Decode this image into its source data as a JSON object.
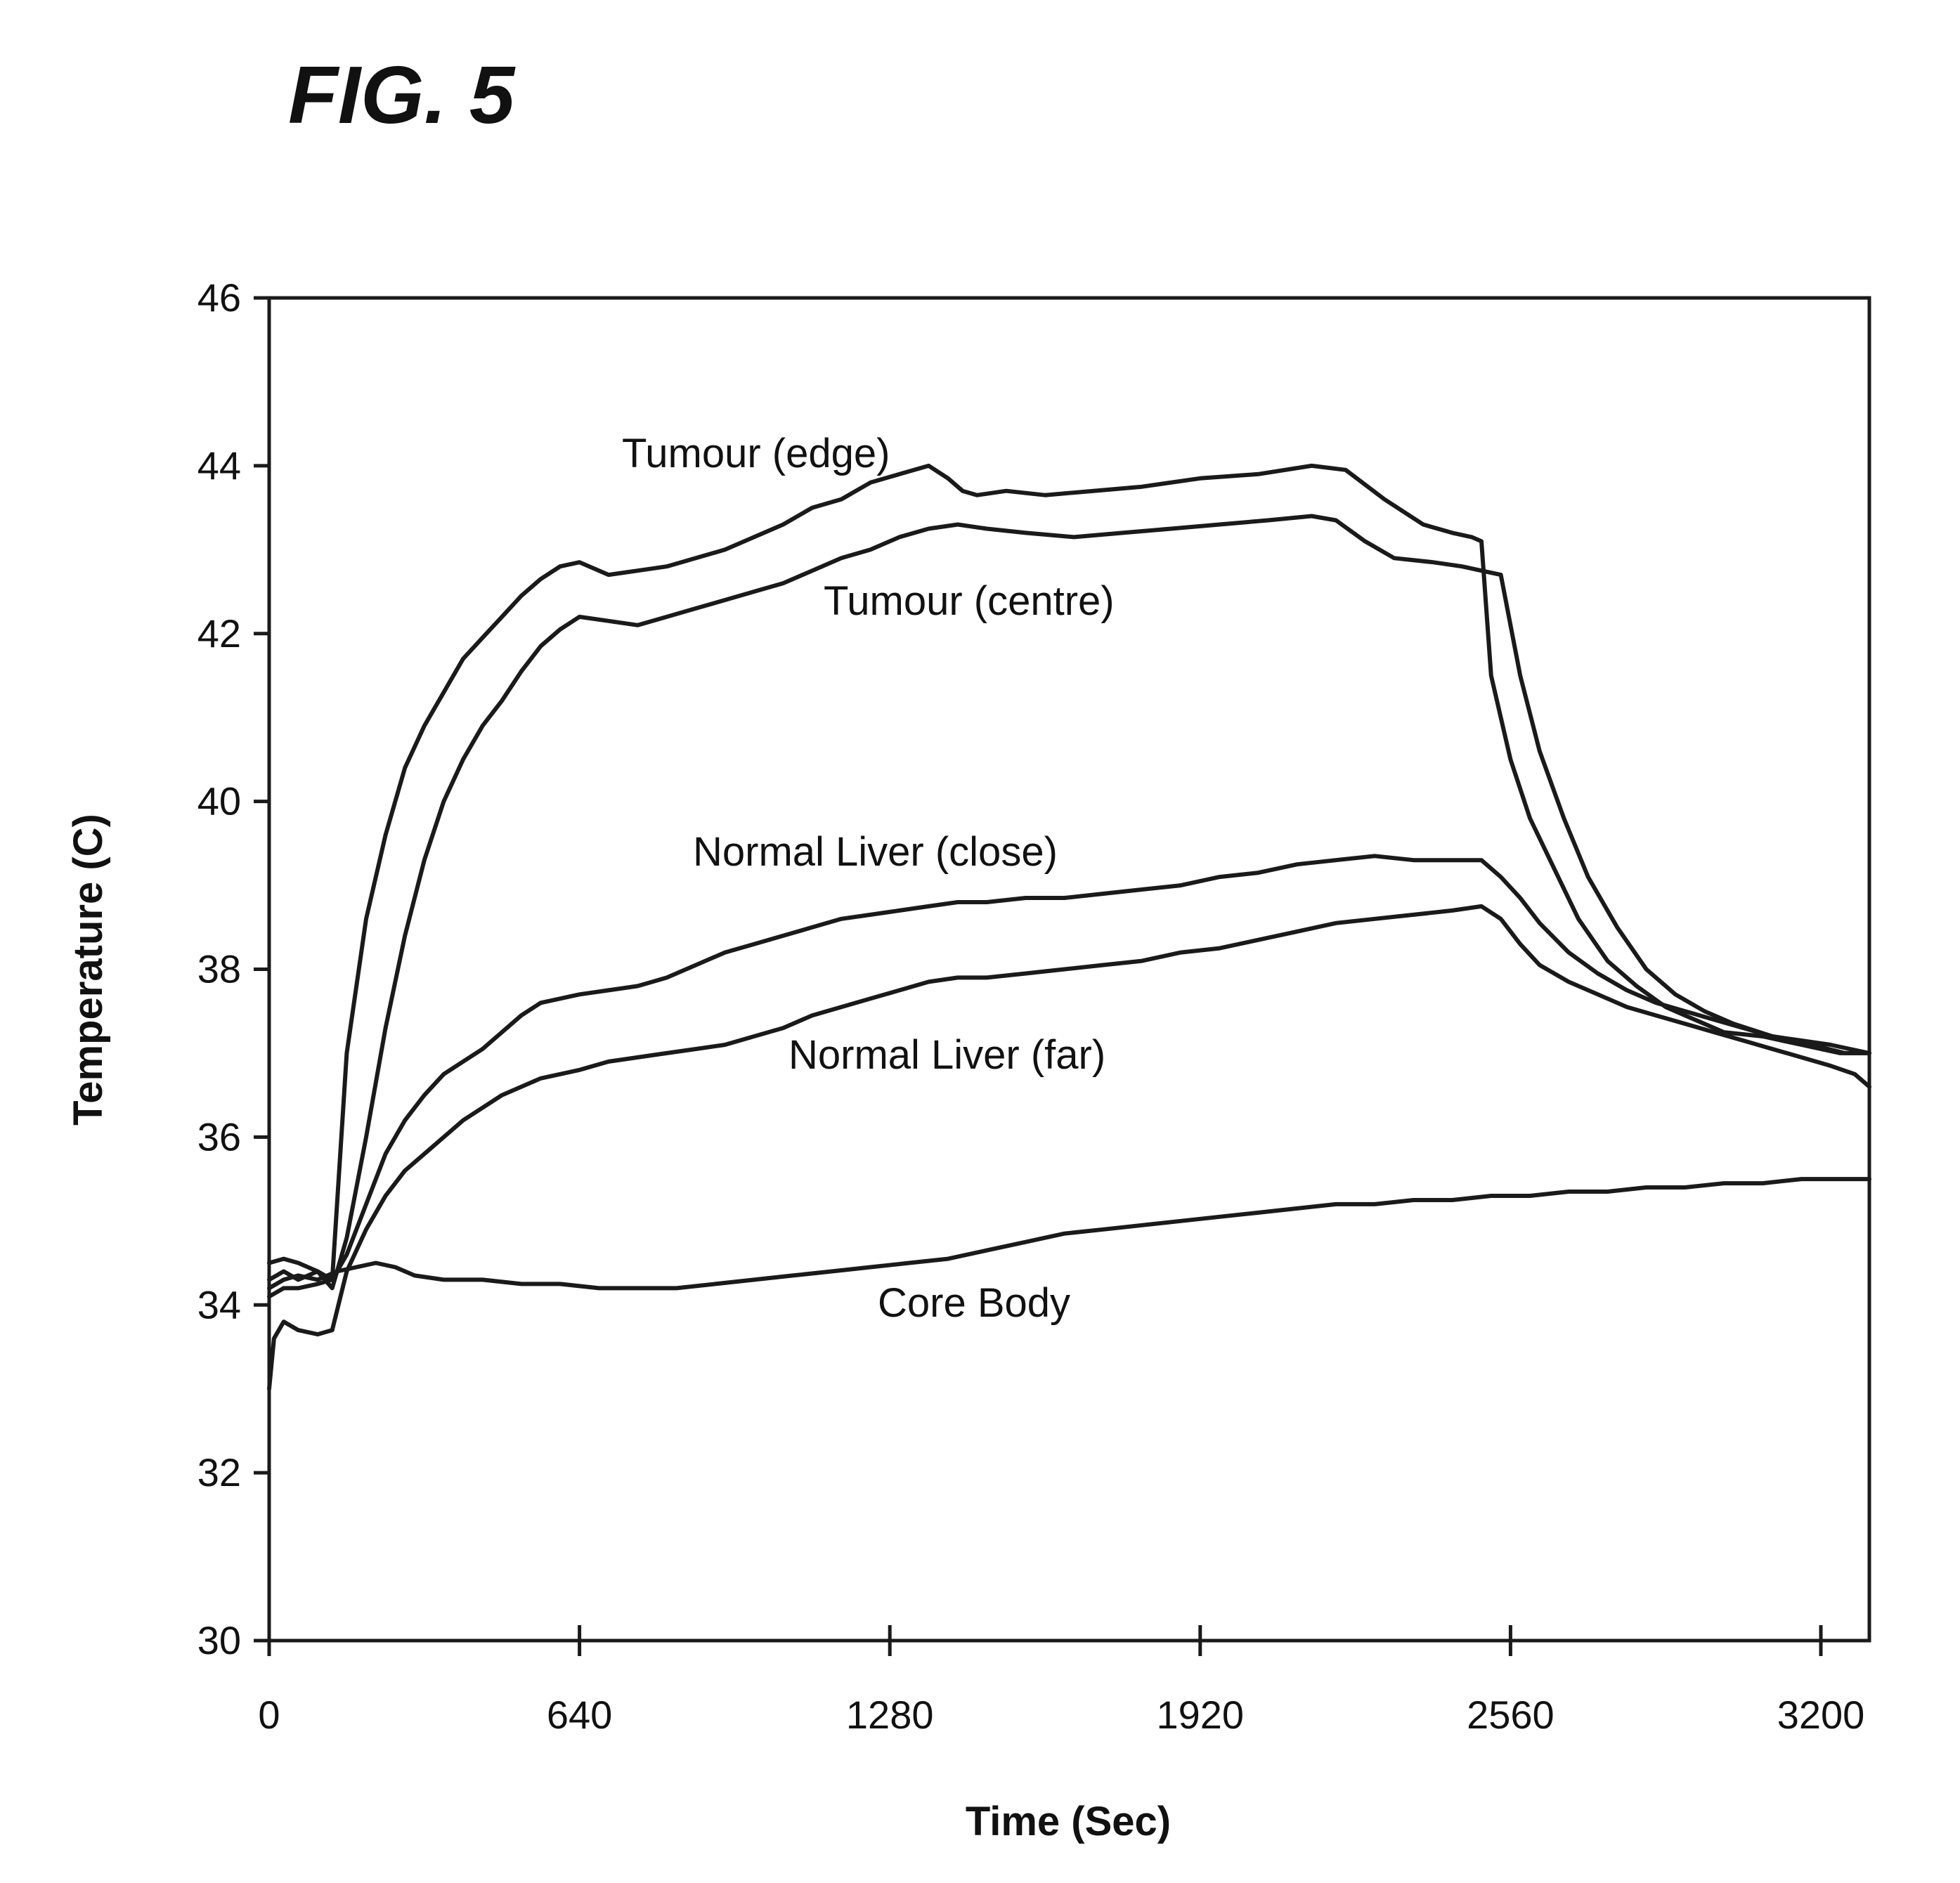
{
  "figure_title": "FIG. 5",
  "chart_data": {
    "type": "line",
    "xlabel": "Time (Sec)",
    "ylabel": "Temperature (C)",
    "xlim": [
      0,
      3300
    ],
    "ylim": [
      30,
      46
    ],
    "x_ticks": [
      0,
      640,
      1280,
      1920,
      2560,
      3200
    ],
    "y_ticks": [
      30,
      32,
      34,
      36,
      38,
      40,
      42,
      44,
      46
    ],
    "grid": false,
    "legend": "none (inline labels)",
    "series": [
      {
        "name": "Tumour (edge)",
        "x": [
          0,
          30,
          60,
          100,
          130,
          160,
          200,
          240,
          280,
          320,
          360,
          400,
          440,
          480,
          520,
          560,
          600,
          640,
          700,
          760,
          820,
          880,
          940,
          1000,
          1060,
          1120,
          1180,
          1240,
          1300,
          1360,
          1400,
          1430,
          1460,
          1520,
          1600,
          1700,
          1800,
          1920,
          2040,
          2150,
          2220,
          2300,
          2380,
          2440,
          2480,
          2500,
          2520,
          2560,
          2600,
          2650,
          2700,
          2760,
          2820,
          2880,
          2940,
          3000,
          3080,
          3160,
          3240,
          3300
        ],
        "y": [
          34.3,
          34.4,
          34.3,
          34.4,
          34.3,
          37.0,
          38.6,
          39.6,
          40.4,
          40.9,
          41.3,
          41.7,
          41.95,
          42.2,
          42.45,
          42.65,
          42.8,
          42.85,
          42.7,
          42.75,
          42.8,
          42.9,
          43.0,
          43.15,
          43.3,
          43.5,
          43.6,
          43.8,
          43.9,
          44.0,
          43.85,
          43.7,
          43.65,
          43.7,
          43.65,
          43.7,
          43.75,
          43.85,
          43.9,
          44.0,
          43.95,
          43.6,
          43.3,
          43.2,
          43.15,
          43.1,
          41.5,
          40.5,
          39.8,
          39.2,
          38.6,
          38.1,
          37.8,
          37.55,
          37.4,
          37.25,
          37.2,
          37.1,
          37.0,
          37.0
        ]
      },
      {
        "name": "Tumour (centre)",
        "x": [
          0,
          30,
          60,
          100,
          130,
          160,
          200,
          240,
          280,
          320,
          360,
          400,
          440,
          480,
          520,
          560,
          600,
          640,
          700,
          760,
          820,
          880,
          940,
          1000,
          1060,
          1120,
          1180,
          1240,
          1300,
          1360,
          1420,
          1480,
          1560,
          1660,
          1760,
          1860,
          1960,
          2060,
          2150,
          2200,
          2260,
          2320,
          2400,
          2460,
          2500,
          2540,
          2580,
          2620,
          2670,
          2720,
          2780,
          2840,
          2900,
          2960,
          3020,
          3100,
          3180,
          3250,
          3300
        ],
        "y": [
          34.5,
          34.55,
          34.5,
          34.4,
          34.2,
          34.8,
          36.0,
          37.3,
          38.4,
          39.3,
          40.0,
          40.5,
          40.9,
          41.2,
          41.55,
          41.85,
          42.05,
          42.2,
          42.15,
          42.1,
          42.2,
          42.3,
          42.4,
          42.5,
          42.6,
          42.75,
          42.9,
          43.0,
          43.15,
          43.25,
          43.3,
          43.25,
          43.2,
          43.15,
          43.2,
          43.25,
          43.3,
          43.35,
          43.4,
          43.35,
          43.1,
          42.9,
          42.85,
          42.8,
          42.75,
          42.7,
          41.5,
          40.6,
          39.8,
          39.1,
          38.5,
          38.0,
          37.7,
          37.5,
          37.35,
          37.2,
          37.1,
          37.0,
          37.0
        ]
      },
      {
        "name": "Normal Liver (close)",
        "x": [
          0,
          30,
          60,
          100,
          130,
          160,
          200,
          240,
          280,
          320,
          360,
          400,
          440,
          480,
          520,
          560,
          600,
          640,
          700,
          760,
          820,
          880,
          940,
          1000,
          1060,
          1120,
          1180,
          1240,
          1300,
          1360,
          1420,
          1480,
          1560,
          1640,
          1720,
          1800,
          1880,
          1960,
          2040,
          2120,
          2200,
          2280,
          2360,
          2440,
          2500,
          2540,
          2580,
          2620,
          2680,
          2740,
          2800,
          2860,
          2920,
          2980,
          3040,
          3100,
          3160,
          3220,
          3260,
          3300
        ],
        "y": [
          34.1,
          34.2,
          34.2,
          34.25,
          34.3,
          34.6,
          35.2,
          35.8,
          36.2,
          36.5,
          36.75,
          36.9,
          37.05,
          37.25,
          37.45,
          37.6,
          37.65,
          37.7,
          37.75,
          37.8,
          37.9,
          38.05,
          38.2,
          38.3,
          38.4,
          38.5,
          38.6,
          38.65,
          38.7,
          38.75,
          38.8,
          38.8,
          38.85,
          38.85,
          38.9,
          38.95,
          39.0,
          39.1,
          39.15,
          39.25,
          39.3,
          39.35,
          39.3,
          39.3,
          39.3,
          39.1,
          38.85,
          38.55,
          38.2,
          37.95,
          37.75,
          37.6,
          37.5,
          37.4,
          37.3,
          37.2,
          37.15,
          37.1,
          37.05,
          37.0
        ]
      },
      {
        "name": "Normal Liver (far)",
        "x": [
          0,
          10,
          30,
          60,
          100,
          130,
          160,
          200,
          240,
          280,
          320,
          360,
          400,
          440,
          480,
          520,
          560,
          600,
          640,
          700,
          760,
          820,
          880,
          940,
          1000,
          1060,
          1120,
          1180,
          1240,
          1300,
          1360,
          1420,
          1480,
          1560,
          1640,
          1720,
          1800,
          1880,
          1960,
          2040,
          2120,
          2200,
          2280,
          2360,
          2440,
          2500,
          2540,
          2580,
          2620,
          2680,
          2740,
          2800,
          2860,
          2920,
          2980,
          3040,
          3100,
          3160,
          3220,
          3270,
          3300
        ],
        "y": [
          33.0,
          33.6,
          33.8,
          33.7,
          33.65,
          33.7,
          34.4,
          34.9,
          35.3,
          35.6,
          35.8,
          36.0,
          36.2,
          36.35,
          36.5,
          36.6,
          36.7,
          36.75,
          36.8,
          36.9,
          36.95,
          37.0,
          37.05,
          37.1,
          37.2,
          37.3,
          37.45,
          37.55,
          37.65,
          37.75,
          37.85,
          37.9,
          37.9,
          37.95,
          38.0,
          38.05,
          38.1,
          38.2,
          38.25,
          38.35,
          38.45,
          38.55,
          38.6,
          38.65,
          38.7,
          38.75,
          38.6,
          38.3,
          38.05,
          37.85,
          37.7,
          37.55,
          37.45,
          37.35,
          37.25,
          37.15,
          37.05,
          36.95,
          36.85,
          36.75,
          36.6
        ]
      },
      {
        "name": "Core Body",
        "x": [
          0,
          30,
          60,
          100,
          140,
          180,
          220,
          260,
          300,
          360,
          440,
          520,
          600,
          680,
          760,
          840,
          920,
          1000,
          1080,
          1160,
          1240,
          1320,
          1400,
          1480,
          1560,
          1640,
          1720,
          1800,
          1880,
          1960,
          2040,
          2120,
          2200,
          2280,
          2360,
          2440,
          2520,
          2600,
          2680,
          2760,
          2840,
          2920,
          3000,
          3080,
          3160,
          3240,
          3300
        ],
        "y": [
          34.2,
          34.3,
          34.35,
          34.3,
          34.4,
          34.45,
          34.5,
          34.45,
          34.35,
          34.3,
          34.3,
          34.25,
          34.25,
          34.2,
          34.2,
          34.2,
          34.25,
          34.3,
          34.35,
          34.4,
          34.45,
          34.5,
          34.55,
          34.65,
          34.75,
          34.85,
          34.9,
          34.95,
          35.0,
          35.05,
          35.1,
          35.15,
          35.2,
          35.2,
          35.25,
          35.25,
          35.3,
          35.3,
          35.35,
          35.35,
          35.4,
          35.4,
          35.45,
          35.45,
          35.5,
          35.5,
          35.5
        ]
      }
    ]
  }
}
